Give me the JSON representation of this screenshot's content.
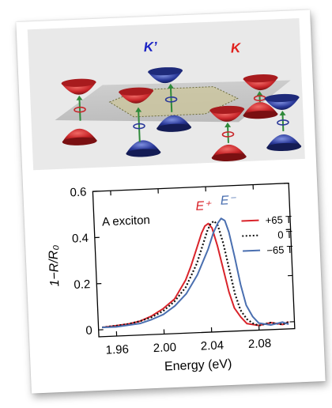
{
  "valley_labels": {
    "k_prime": "K’",
    "k": "K"
  },
  "colors": {
    "k_prime_label": "#1b23c4",
    "k_label": "#e0201c",
    "plus_field": "#d9232a",
    "zero_field": "#111111",
    "minus_field": "#4a6fb0",
    "red_cone": "#c8262a",
    "blue_cone": "#2b3a9a",
    "arrow": "#2f8a3a"
  },
  "chart_data": {
    "type": "line",
    "xlabel": "Energy (eV)",
    "ylabel": "1−R/R₀",
    "xlim": [
      1.945,
      2.11
    ],
    "ylim": [
      -0.03,
      0.6
    ],
    "xticks": [
      1.96,
      2.0,
      2.04,
      2.08
    ],
    "xtick_labels": [
      "1.96",
      "2.00",
      "2.04",
      "2.08"
    ],
    "yticks": [
      0,
      0.2,
      0.4,
      0.6
    ],
    "ytick_labels": [
      "0",
      "0.2",
      "0.4",
      "0.6"
    ],
    "annotations": {
      "title_label": "A exciton",
      "e_plus": "E⁺",
      "e_minus": "E⁻"
    },
    "legend_position": "top-right",
    "series": [
      {
        "name": "+65 T",
        "color": "#d9232a",
        "dash": "solid",
        "x": [
          1.948,
          1.96,
          1.97,
          1.98,
          1.99,
          2.0,
          2.01,
          2.02,
          2.025,
          2.03,
          2.035,
          2.038,
          2.041,
          2.044,
          2.048,
          2.052,
          2.056,
          2.06,
          2.065,
          2.07,
          2.08,
          2.09,
          2.1,
          2.105
        ],
        "y": [
          0.01,
          0.015,
          0.02,
          0.03,
          0.05,
          0.08,
          0.12,
          0.2,
          0.26,
          0.33,
          0.4,
          0.43,
          0.44,
          0.42,
          0.34,
          0.24,
          0.14,
          0.07,
          0.03,
          0.0,
          -0.01,
          0.0,
          -0.01,
          0.0
        ]
      },
      {
        "name": "0 T",
        "color": "#111111",
        "dash": "dotted",
        "x": [
          1.948,
          1.96,
          1.97,
          1.98,
          1.99,
          2.0,
          2.01,
          2.02,
          2.03,
          2.035,
          2.04,
          2.043,
          2.046,
          2.049,
          2.053,
          2.057,
          2.061,
          2.065,
          2.07,
          2.075,
          2.08,
          2.09,
          2.1,
          2.105
        ],
        "y": [
          0.01,
          0.015,
          0.02,
          0.03,
          0.045,
          0.07,
          0.11,
          0.17,
          0.27,
          0.34,
          0.41,
          0.44,
          0.45,
          0.43,
          0.35,
          0.24,
          0.13,
          0.06,
          0.02,
          0.0,
          -0.01,
          0.0,
          -0.01,
          0.0
        ]
      },
      {
        "name": "−65 T",
        "color": "#4a6fb0",
        "dash": "solid",
        "x": [
          1.948,
          1.96,
          1.97,
          1.98,
          1.99,
          2.0,
          2.01,
          2.02,
          2.03,
          2.04,
          2.045,
          2.049,
          2.052,
          2.055,
          2.058,
          2.062,
          2.066,
          2.07,
          2.075,
          2.08,
          2.09,
          2.1,
          2.105
        ],
        "y": [
          0.01,
          0.01,
          0.015,
          0.02,
          0.035,
          0.055,
          0.09,
          0.14,
          0.22,
          0.33,
          0.4,
          0.44,
          0.46,
          0.45,
          0.4,
          0.29,
          0.17,
          0.08,
          0.03,
          0.0,
          -0.01,
          0.0,
          -0.01
        ]
      }
    ]
  }
}
